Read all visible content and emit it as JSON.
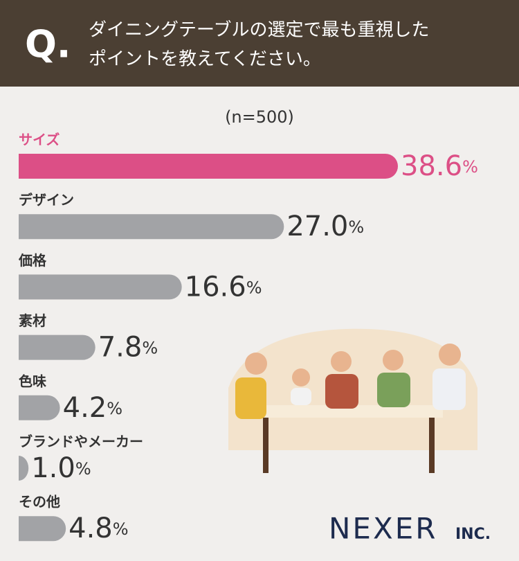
{
  "header": {
    "q_mark": "Q.",
    "question_lines": [
      "ダイニングテーブルの選定で最も重視した",
      "ポイントを教えてください。"
    ]
  },
  "chart_data": {
    "type": "bar",
    "orientation": "horizontal",
    "subtitle": "(n=500)",
    "categories": [
      "サイズ",
      "デザイン",
      "価格",
      "素材",
      "色味",
      "ブランドやメーカー",
      "その他"
    ],
    "values": [
      38.6,
      27.0,
      16.6,
      7.8,
      4.2,
      1.0,
      4.8
    ],
    "value_labels": [
      "38.6",
      "27.0",
      "16.6",
      "7.8",
      "4.2",
      "1.0",
      "4.8"
    ],
    "value_unit": "%",
    "colors": [
      "#dc4f86",
      "#a2a3a6",
      "#a2a3a6",
      "#a2a3a6",
      "#a2a3a6",
      "#a2a3a6",
      "#a2a3a6"
    ]
  },
  "logo": {
    "name": "NEXER",
    "suffix": "INC."
  }
}
